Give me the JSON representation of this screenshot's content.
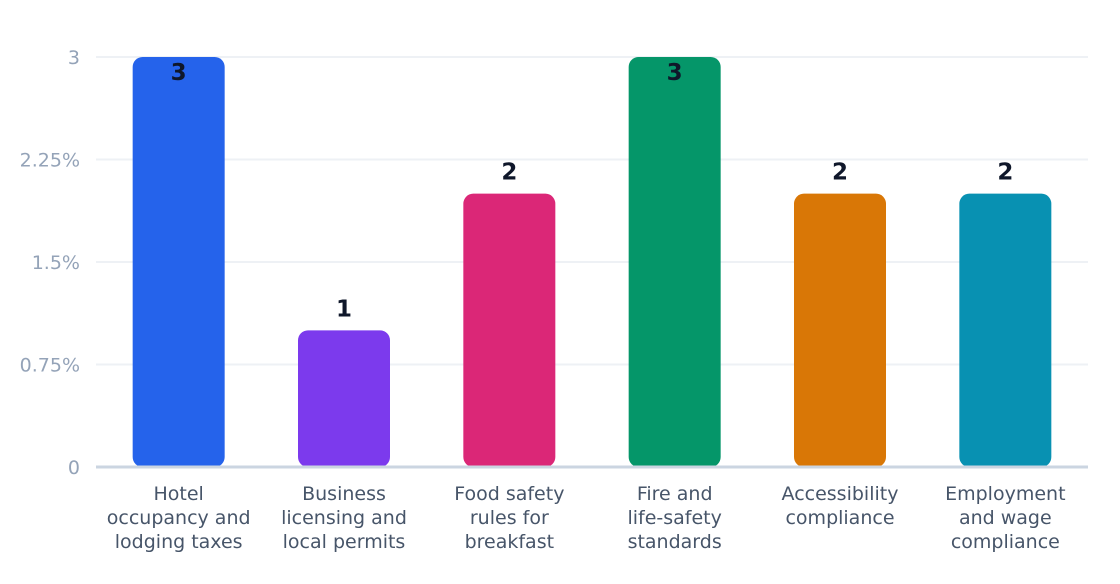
{
  "chart_data": {
    "type": "bar",
    "categories": [
      [
        "Hotel",
        "occupancy and",
        "lodging taxes"
      ],
      [
        "Business",
        "licensing and",
        "local permits"
      ],
      [
        "Food safety",
        "rules for",
        "breakfast"
      ],
      [
        "Fire and",
        "life-safety",
        "standards"
      ],
      [
        "Accessibility",
        "compliance"
      ],
      [
        "Employment",
        "and wage",
        "compliance"
      ]
    ],
    "values": [
      3,
      1,
      2,
      3,
      2,
      2
    ],
    "data_labels": [
      "3",
      "1",
      "2",
      "3",
      "2",
      "2"
    ],
    "colors": [
      "#2563eb",
      "#7c3aed",
      "#db2777",
      "#059669",
      "#d97706",
      "#0891b2"
    ],
    "ylim": [
      0,
      3
    ],
    "y_ticks": [
      0,
      0.75,
      1.5,
      2.25,
      3
    ],
    "y_tick_labels": [
      "0",
      "0.75%",
      "1.5%",
      "2.25%",
      "3"
    ],
    "grid": true,
    "title": "",
    "xlabel": "",
    "ylabel": ""
  }
}
